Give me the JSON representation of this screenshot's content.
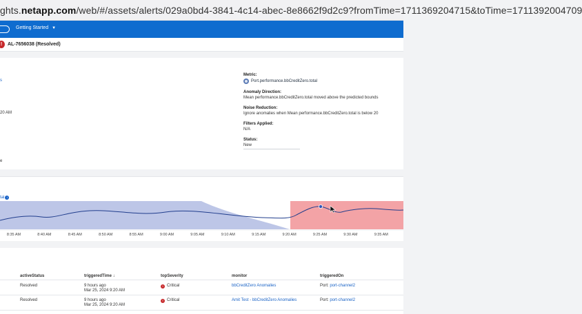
{
  "browser": {
    "url_prefix": "ghts.",
    "url_host": "netapp.com",
    "url_rest": "/web/#/assets/alerts/029a0bd4-3841-4c14-abec-8e8662f9d2c9?fromTime=1711369204715&toTime=1711392004709"
  },
  "nav": {
    "getting_started": "Getting Started",
    "chevron": "▼"
  },
  "alert": {
    "icon": "!",
    "id": "AL-7656038 (Resolved)"
  },
  "left_fragments": {
    "top": "s",
    "middle": "20 AM",
    "bottom": "e"
  },
  "details": {
    "metric_label": "Metric:",
    "metric_value": "Port.performance.bbCreditZero.total",
    "direction_label": "Anomaly Direction:",
    "direction_value": "Mean performance.bbCreditZero.total moved above the predicted bounds",
    "noise_label": "Noise Reduction:",
    "noise_value": "Ignore anomalies when Mean performance.bbCreditZero.total is below 20",
    "filters_label": "Filters Applied:",
    "filters_value": "N/A",
    "status_label": "Status:",
    "status_value": "New"
  },
  "chart_title_fragment": "tal",
  "chart_data": {
    "type": "area",
    "x_ticks": [
      "8:35 AM",
      "8:40 AM",
      "8:45 AM",
      "8:50 AM",
      "8:55 AM",
      "9:00 AM",
      "9:05 AM",
      "9:10 AM",
      "9:15 AM",
      "9:20 AM",
      "9:25 AM",
      "9:30 AM",
      "9:35 AM"
    ],
    "anomaly_start": "9:20 AM",
    "grid": false,
    "colors": {
      "band": "#b9c3e6",
      "line": "#1f3c8c",
      "anomaly": "#f3a3a6",
      "point": "#2f54b8"
    }
  },
  "table": {
    "headers": {
      "status": "activeStatus",
      "time": "triggeredTime",
      "sort": "↓",
      "severity": "topSeverity",
      "monitor": "monitor",
      "on": "triggeredOn"
    },
    "rows": [
      {
        "status": "Resolved",
        "time1": "9 hours ago",
        "time2": "Mar 25, 2024 9:20 AM",
        "sev_icon": "!",
        "severity": "Critical",
        "monitor": "bbCreditZero Anomalies",
        "on_label": "Port:",
        "on_link": "port-channel2"
      },
      {
        "status": "Resolved",
        "time1": "9 hours ago",
        "time2": "Mar 25, 2024 9:20 AM",
        "sev_icon": "!",
        "severity": "Critical",
        "monitor": "Amit Test - bbCreditZero Anomalies",
        "on_label": "Port:",
        "on_link": "port-channel2"
      }
    ]
  }
}
